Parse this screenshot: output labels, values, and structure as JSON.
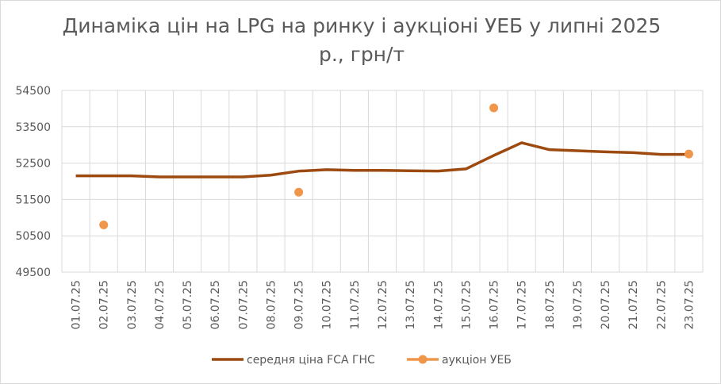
{
  "chart_data": {
    "type": "line",
    "title_line1": "Динаміка цін на LPG на ринку і аукціоні УЕБ у липні 2025",
    "title_line2": "р., грн/т",
    "categories": [
      "01.07.25",
      "02.07.25",
      "03.07.25",
      "04.07.25",
      "05.07.25",
      "06.07.25",
      "07.07.25",
      "08.07.25",
      "09.07.25",
      "10.07.25",
      "11.07.25",
      "12.07.25",
      "13.07.25",
      "14.07.25",
      "15.07.25",
      "16.07.25",
      "17.07.25",
      "18.07.25",
      "19.07.25",
      "20.07.25",
      "21.07.25",
      "22.07.25",
      "23.07.25"
    ],
    "ylim": [
      49500,
      54500
    ],
    "yticks": [
      49500,
      50500,
      51500,
      52500,
      53500,
      54500
    ],
    "grid": true,
    "legend_position": "bottom",
    "series": [
      {
        "name": "середня ціна FCA ГНС",
        "kind": "line",
        "color": "#9c4a10",
        "values": [
          52150,
          52150,
          52150,
          52120,
          52120,
          52120,
          52120,
          52170,
          52280,
          52320,
          52300,
          52300,
          52290,
          52280,
          52340,
          52710,
          53060,
          52870,
          52840,
          52810,
          52790,
          52740,
          52740
        ]
      },
      {
        "name": "аукціон УЕБ",
        "kind": "marker",
        "color": "#f0964a",
        "values": [
          null,
          50800,
          null,
          null,
          null,
          null,
          null,
          null,
          51700,
          null,
          null,
          null,
          null,
          null,
          null,
          54020,
          null,
          null,
          null,
          null,
          null,
          null,
          52750
        ]
      }
    ]
  }
}
